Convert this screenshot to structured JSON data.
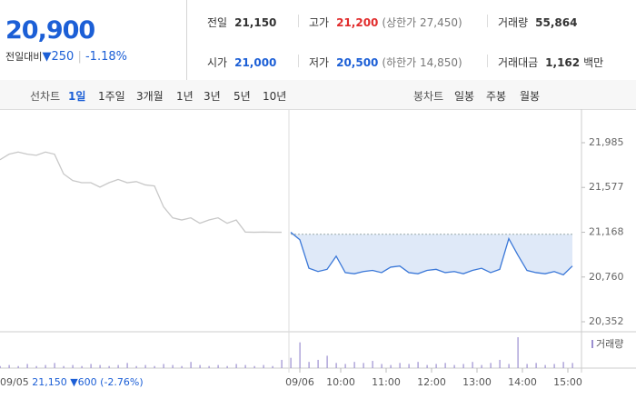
{
  "header": {
    "price": "20,900",
    "change_label": "전일대비",
    "change": "250",
    "change_pct": "-1.18%"
  },
  "stats": [
    [
      {
        "label": "전일",
        "value": "21,150"
      },
      {
        "label": "고가",
        "value": "21,200",
        "limit": "(상한가 27,450)"
      },
      {
        "label": "거래량",
        "value": "55,864"
      }
    ],
    [
      {
        "label": "시가",
        "value": "21,000"
      },
      {
        "label": "저가",
        "value": "20,500",
        "limit": "(하한가 14,850)"
      },
      {
        "label": "거래대금",
        "value": "1,162",
        "unit": "백만"
      }
    ]
  ],
  "tabs": {
    "line_label": "선차트",
    "line_items": [
      "1일",
      "1주일",
      "3개월",
      "1년",
      "3년",
      "5년",
      "10년"
    ],
    "selected": "1일",
    "candle_label": "봉차트",
    "candle_items": [
      "일봉",
      "주봉",
      "월봉"
    ]
  },
  "chart_data": {
    "type": "line",
    "ylim": [
      20352,
      21985
    ],
    "yticks": [
      {
        "value": 21985,
        "label": "21,985"
      },
      {
        "value": 21577,
        "label": "21,577"
      },
      {
        "value": 21168,
        "label": "21,168"
      },
      {
        "value": 20760,
        "label": "20,760"
      },
      {
        "value": 20352,
        "label": "20,352"
      }
    ],
    "xlim": [
      0,
      64
    ],
    "xticks": [
      {
        "value": 33,
        "label": "09/06"
      },
      {
        "value": 37.5,
        "label": "10:00"
      },
      {
        "value": 42.5,
        "label": "11:00"
      },
      {
        "value": 47.5,
        "label": "12:00"
      },
      {
        "value": 52.5,
        "label": "13:00"
      },
      {
        "value": 57.5,
        "label": "14:00"
      },
      {
        "value": 62.5,
        "label": "15:00"
      }
    ],
    "baseline": 21150,
    "series": [
      {
        "color": "#c8c8c8",
        "values": [
          21830,
          21880,
          21900,
          21880,
          21870,
          21900,
          21880,
          21700,
          21640,
          21620,
          21620,
          21580,
          21620,
          21650,
          21620,
          21630,
          21600,
          21590,
          21400,
          21300,
          21280,
          21300,
          21250,
          21280,
          21300,
          21250,
          21280,
          21170,
          21168,
          21170,
          21168,
          21168,
          null,
          null,
          null,
          null,
          null,
          null,
          null,
          null,
          null,
          null,
          null,
          null,
          null,
          null,
          null,
          null,
          null,
          null,
          null,
          null,
          null,
          null,
          null,
          null,
          null,
          null,
          null,
          null,
          null,
          null,
          null,
          null
        ]
      },
      {
        "color": "#3b78d8",
        "values": [
          null,
          null,
          null,
          null,
          null,
          null,
          null,
          null,
          null,
          null,
          null,
          null,
          null,
          null,
          null,
          null,
          null,
          null,
          null,
          null,
          null,
          null,
          null,
          null,
          null,
          null,
          null,
          null,
          null,
          null,
          null,
          null,
          21168,
          21100,
          20840,
          20810,
          20830,
          20950,
          20800,
          20790,
          20810,
          20820,
          20800,
          20850,
          20860,
          20800,
          20790,
          20820,
          20830,
          20800,
          20810,
          20790,
          20820,
          20840,
          20800,
          20830,
          21110,
          20960,
          20820,
          20800,
          20790,
          20810,
          20780,
          20860
        ]
      }
    ],
    "volume": {
      "name": "거래량",
      "color": "#9b8fd0",
      "values": [
        2,
        3,
        2,
        4,
        2,
        3,
        5,
        2,
        3,
        2,
        4,
        3,
        2,
        3,
        5,
        2,
        3,
        2,
        4,
        3,
        2,
        6,
        3,
        2,
        3,
        2,
        4,
        3,
        2,
        3,
        2,
        8,
        10,
        25,
        6,
        8,
        12,
        5,
        4,
        6,
        5,
        7,
        4,
        3,
        5,
        4,
        6,
        3,
        4,
        5,
        3,
        4,
        6,
        3,
        5,
        8,
        4,
        30,
        4,
        5,
        3,
        4,
        6,
        5
      ]
    },
    "legend": {
      "date": "09/05",
      "close": "21,150",
      "change": "600",
      "change_pct": "(-2.76%)"
    }
  }
}
